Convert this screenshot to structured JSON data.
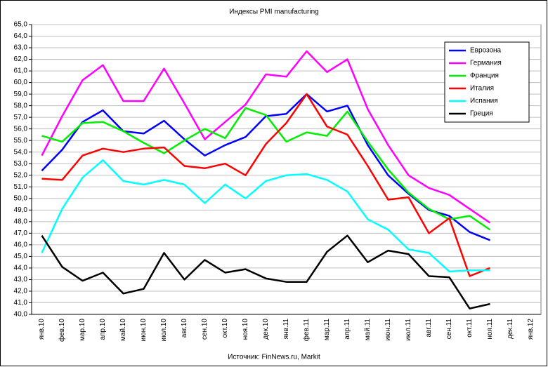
{
  "chart_data": {
    "type": "line",
    "title": "Индексы PMI manufacturing",
    "source": "Источник: FinNews.ru, Markit",
    "categories": [
      "янв.10",
      "фев.10",
      "мар.10",
      "апр.10",
      "май.10",
      "июн.10",
      "июл.10",
      "авг.10",
      "сен.10",
      "окт.10",
      "ноя.10",
      "дек.10",
      "янв.11",
      "фев.11",
      "мар.11",
      "апр.11",
      "май.11",
      "июн.11",
      "июл.11",
      "авг.11",
      "сен.11",
      "окт.11",
      "ноя.11",
      "дек.11",
      "янв.12"
    ],
    "series": [
      {
        "name": "Еврозона",
        "color": "#0000ff",
        "values": [
          52.4,
          54.2,
          56.6,
          57.6,
          55.8,
          55.6,
          56.7,
          55.1,
          53.7,
          54.6,
          55.3,
          57.1,
          57.3,
          59.0,
          57.5,
          58.0,
          54.6,
          52.0,
          50.4,
          49.0,
          48.5,
          47.1,
          46.4,
          null,
          null
        ]
      },
      {
        "name": "Германия",
        "color": "#ff00ff",
        "values": [
          53.7,
          57.1,
          60.2,
          61.5,
          58.4,
          58.4,
          61.2,
          58.2,
          55.1,
          56.6,
          58.1,
          60.7,
          60.5,
          62.7,
          60.9,
          62.0,
          57.7,
          54.6,
          52.0,
          50.9,
          50.3,
          49.1,
          47.9,
          null,
          null
        ]
      },
      {
        "name": "Франция",
        "color": "#00ee00",
        "values": [
          55.4,
          54.9,
          56.5,
          56.6,
          55.8,
          54.8,
          53.9,
          55.0,
          56.0,
          55.2,
          57.8,
          57.2,
          54.9,
          55.7,
          55.4,
          57.5,
          54.9,
          52.5,
          50.5,
          49.1,
          48.2,
          48.5,
          47.3,
          null,
          null
        ]
      },
      {
        "name": "Италия",
        "color": "#ff0000",
        "values": [
          51.7,
          51.6,
          53.7,
          54.3,
          54.0,
          54.3,
          54.4,
          52.8,
          52.6,
          53.0,
          52.0,
          54.7,
          56.5,
          59.0,
          56.2,
          55.5,
          52.8,
          49.9,
          50.1,
          47.0,
          48.3,
          43.3,
          44.0,
          null,
          null
        ]
      },
      {
        "name": "Испания",
        "color": "#00ffff",
        "values": [
          45.3,
          49.1,
          51.8,
          53.3,
          51.5,
          51.2,
          51.6,
          51.2,
          49.6,
          51.2,
          50.0,
          51.5,
          52.0,
          52.1,
          51.6,
          50.6,
          48.2,
          47.3,
          45.6,
          45.3,
          43.7,
          43.8,
          43.8,
          null,
          null
        ]
      },
      {
        "name": "Греция",
        "color": "#000000",
        "values": [
          46.8,
          44.1,
          42.9,
          43.6,
          41.8,
          42.2,
          45.3,
          43.0,
          44.7,
          43.6,
          43.9,
          43.1,
          42.8,
          42.8,
          45.4,
          46.8,
          44.5,
          45.5,
          45.2,
          43.3,
          43.2,
          40.5,
          40.9,
          null,
          null
        ]
      }
    ],
    "ylim": [
      40,
      65
    ],
    "yticks": [
      {
        "value": 40,
        "label": "40,0"
      },
      {
        "value": 41,
        "label": "41,0"
      },
      {
        "value": 42,
        "label": "42,0"
      },
      {
        "value": 43,
        "label": "43,0"
      },
      {
        "value": 44,
        "label": "44,0"
      },
      {
        "value": 45,
        "label": "45,0"
      },
      {
        "value": 46,
        "label": "46,0"
      },
      {
        "value": 47,
        "label": "47,0"
      },
      {
        "value": 48,
        "label": "48,0"
      },
      {
        "value": 49,
        "label": "49,0"
      },
      {
        "value": 50,
        "label": "50,0"
      },
      {
        "value": 51,
        "label": "51,0"
      },
      {
        "value": 52,
        "label": "52,0"
      },
      {
        "value": 53,
        "label": "53,0"
      },
      {
        "value": 54,
        "label": "54,0"
      },
      {
        "value": 55,
        "label": "55,0"
      },
      {
        "value": 56,
        "label": "56,0"
      },
      {
        "value": 57,
        "label": "57,0"
      },
      {
        "value": 58,
        "label": "58,0"
      },
      {
        "value": 59,
        "label": "59,0"
      },
      {
        "value": 60,
        "label": "60,0"
      },
      {
        "value": 61,
        "label": "61,0"
      },
      {
        "value": 62,
        "label": "62,0"
      },
      {
        "value": 63,
        "label": "63,0"
      },
      {
        "value": 64,
        "label": "64,0"
      },
      {
        "value": 65,
        "label": "65,0"
      }
    ],
    "grid": true,
    "legend": "upper right"
  }
}
